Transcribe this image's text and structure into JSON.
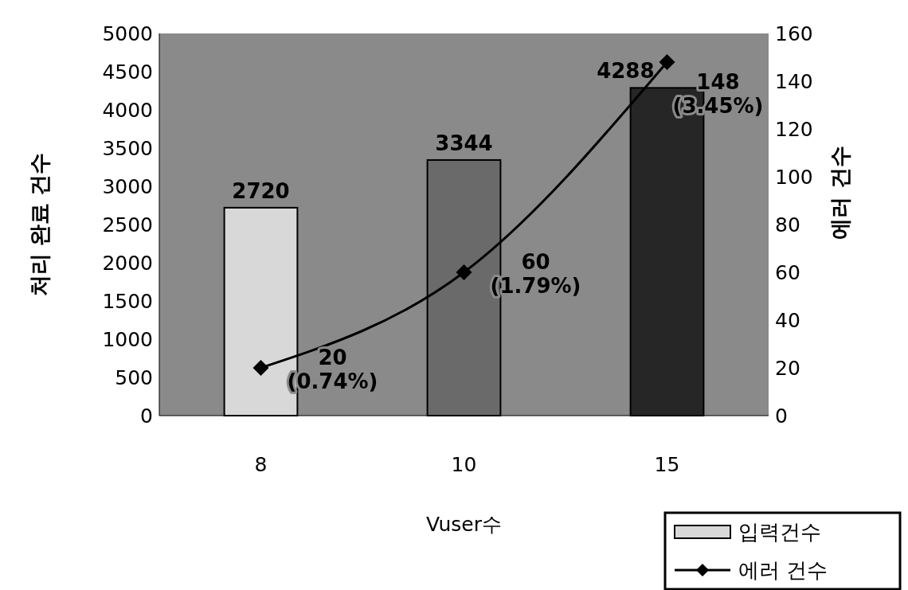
{
  "chart_data": {
    "type": "bar",
    "xlabel": "Vuser수",
    "ylabel": "처리 완료 건수",
    "y2label": "에러 건수",
    "categories": [
      "8",
      "10",
      "15"
    ],
    "series": [
      {
        "name": "입력건수",
        "type": "bar",
        "colors": [
          "#d8d8d8",
          "#6a6a6a",
          "#262626"
        ],
        "color": "#d8d8d8",
        "values": [
          2720,
          3344,
          4288
        ],
        "value_labels": [
          "2720",
          "3344",
          "4288"
        ]
      },
      {
        "name": "에러 건수",
        "type": "line",
        "axis": "y2",
        "color": "#000000",
        "marker": "diamond",
        "values": [
          20,
          60,
          148
        ],
        "value_labels": [
          "20\n(0.74%)",
          "60\n(1.79%)",
          "148\n(3.45%)"
        ]
      }
    ],
    "ylim": [
      0,
      5000
    ],
    "yticks": [
      0,
      500,
      1000,
      1500,
      2000,
      2500,
      3000,
      3500,
      4000,
      4500,
      5000
    ],
    "y2lim": [
      0,
      160
    ],
    "y2ticks": [
      0,
      20,
      40,
      60,
      80,
      100,
      120,
      140,
      160
    ],
    "legend": "bottom right",
    "grid": false
  }
}
